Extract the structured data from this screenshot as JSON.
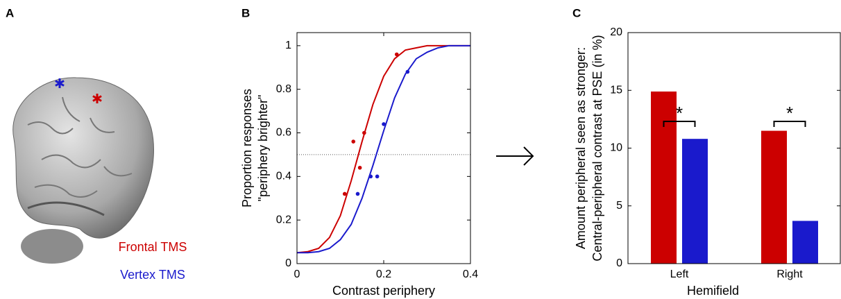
{
  "panel_a": {
    "label": "A",
    "legend": [
      {
        "name": "Frontal TMS",
        "color": "#cc0000"
      },
      {
        "name": "Vertex TMS",
        "color": "#1a1acc"
      }
    ]
  },
  "chart_data": [
    {
      "type": "line",
      "panel_label": "B",
      "xlabel": "Contrast periphery",
      "ylabel": [
        "Proportion responses",
        "\"periphery brighter\""
      ],
      "xlim": [
        0,
        0.4
      ],
      "xticks": [
        0,
        0.2,
        0.4
      ],
      "ylim": [
        0,
        1.06
      ],
      "yticks": [
        0,
        0.2,
        0.4,
        0.6,
        0.8,
        1
      ],
      "reference_line": 0.5,
      "x": [
        0,
        0.025,
        0.05,
        0.075,
        0.1,
        0.125,
        0.15,
        0.175,
        0.2,
        0.225,
        0.25,
        0.275,
        0.3,
        0.325,
        0.35,
        0.375,
        0.4
      ],
      "series": [
        {
          "color": "#cc0000",
          "values": [
            0.05,
            0.055,
            0.07,
            0.12,
            0.22,
            0.38,
            0.56,
            0.73,
            0.86,
            0.94,
            0.98,
            0.99,
            1,
            1,
            1,
            1,
            1
          ]
        },
        {
          "color": "#1a1acc",
          "values": [
            0.05,
            0.05,
            0.055,
            0.07,
            0.11,
            0.18,
            0.3,
            0.45,
            0.61,
            0.76,
            0.87,
            0.94,
            0.97,
            0.99,
            1,
            1,
            1
          ]
        }
      ],
      "points": [
        {
          "color": "#cc0000",
          "x": [
            0.11,
            0.13,
            0.145,
            0.155,
            0.23
          ],
          "y": [
            0.32,
            0.56,
            0.44,
            0.6,
            0.96
          ]
        },
        {
          "color": "#1a1acc",
          "x": [
            0.14,
            0.17,
            0.185,
            0.2,
            0.255
          ],
          "y": [
            0.32,
            0.4,
            0.4,
            0.64,
            0.88
          ]
        }
      ]
    },
    {
      "type": "bar",
      "panel_label": "C",
      "xlabel": "Hemifield",
      "ylabel": [
        "Amount peripheral seen as stronger:",
        "Central-peripheral contrast at PSE (in %)"
      ],
      "categories": [
        "Left",
        "Right"
      ],
      "series": [
        {
          "name": "Frontal TMS",
          "color": "#cc0000",
          "values": [
            14.9,
            11.5
          ]
        },
        {
          "name": "Vertex TMS",
          "color": "#1a1acc",
          "values": [
            10.8,
            3.7
          ]
        }
      ],
      "ylim": [
        0,
        20
      ],
      "yticks": [
        0,
        5,
        10,
        15,
        20
      ],
      "annotations": [
        "*",
        "*"
      ]
    }
  ]
}
